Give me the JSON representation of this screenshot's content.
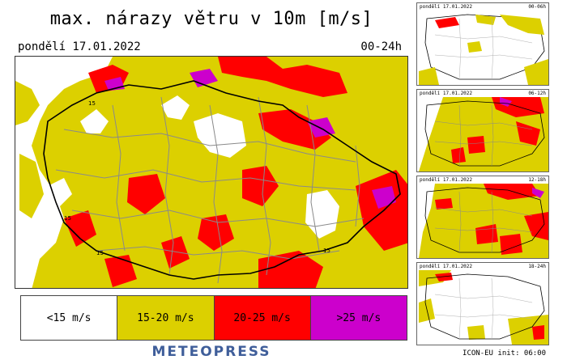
{
  "main": {
    "title": "max. nárazy větru v 10m [m/s]",
    "date": "pondělí 17.01.2022",
    "range": "00-24h",
    "map_labels": [
      "15",
      "15",
      "15",
      "15"
    ]
  },
  "legend": [
    {
      "label": "<15 m/s",
      "color": "#ffffff"
    },
    {
      "label": "15-20 m/s",
      "color": "#dcd000"
    },
    {
      "label": "20-25 m/s",
      "color": "#ff0000"
    },
    {
      "label": ">25 m/s",
      "color": "#cc00cc"
    }
  ],
  "brand": "METEOPRESS",
  "thumbnails": [
    {
      "date": "pondělí 17.01.2022",
      "range": "00-06h",
      "intensity": "low"
    },
    {
      "date": "pondělí 17.01.2022",
      "range": "06-12h",
      "intensity": "high"
    },
    {
      "date": "pondělí 17.01.2022",
      "range": "12-18h",
      "intensity": "high"
    },
    {
      "date": "pondělí 17.01.2022",
      "range": "18-24h",
      "intensity": "low"
    }
  ],
  "model_info": "ICON-EU  init:  06:00",
  "colors": {
    "below_15": "#ffffff",
    "15_20": "#dcd000",
    "20_25": "#ff0000",
    "above_25": "#cc00cc",
    "brand": "#3f5e9a"
  }
}
